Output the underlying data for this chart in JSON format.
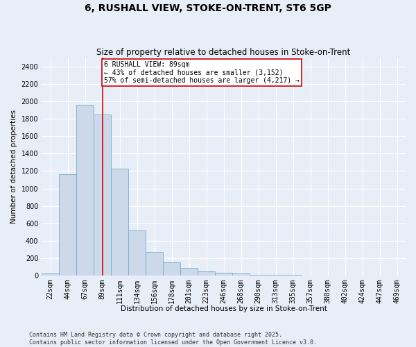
{
  "title": "6, RUSHALL VIEW, STOKE-ON-TRENT, ST6 5GP",
  "subtitle": "Size of property relative to detached houses in Stoke-on-Trent",
  "xlabel": "Distribution of detached houses by size in Stoke-on-Trent",
  "ylabel": "Number of detached properties",
  "categories": [
    "22sqm",
    "44sqm",
    "67sqm",
    "89sqm",
    "111sqm",
    "134sqm",
    "156sqm",
    "178sqm",
    "201sqm",
    "223sqm",
    "246sqm",
    "268sqm",
    "290sqm",
    "313sqm",
    "335sqm",
    "357sqm",
    "380sqm",
    "402sqm",
    "424sqm",
    "447sqm",
    "469sqm"
  ],
  "values": [
    25,
    1165,
    1960,
    1850,
    1230,
    520,
    270,
    155,
    90,
    50,
    30,
    28,
    10,
    8,
    5,
    4,
    3,
    2,
    2,
    2,
    2
  ],
  "bar_color": "#ccd9ea",
  "bar_edge_color": "#7eaac8",
  "vline_x": 3,
  "vline_color": "#dd0000",
  "annotation_text": "6 RUSHALL VIEW: 89sqm\n← 43% of detached houses are smaller (3,152)\n57% of semi-detached houses are larger (4,217) →",
  "annotation_box_color": "#ffffff",
  "annotation_box_edge": "#cc0000",
  "background_color": "#e8eef8",
  "grid_color": "#ffffff",
  "footer_line1": "Contains HM Land Registry data © Crown copyright and database right 2025.",
  "footer_line2": "Contains public sector information licensed under the Open Government Licence v3.0.",
  "ylim": [
    0,
    2500
  ],
  "yticks": [
    0,
    200,
    400,
    600,
    800,
    1000,
    1200,
    1400,
    1600,
    1800,
    2000,
    2200,
    2400
  ],
  "title_fontsize": 10,
  "subtitle_fontsize": 8.5,
  "axis_label_fontsize": 7.5,
  "tick_fontsize": 7,
  "annotation_fontsize": 7,
  "footer_fontsize": 6
}
